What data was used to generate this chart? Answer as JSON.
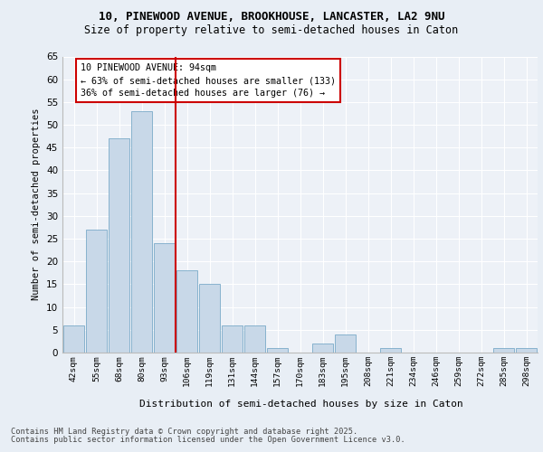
{
  "title_line1": "10, PINEWOOD AVENUE, BROOKHOUSE, LANCASTER, LA2 9NU",
  "title_line2": "Size of property relative to semi-detached houses in Caton",
  "xlabel": "Distribution of semi-detached houses by size in Caton",
  "ylabel": "Number of semi-detached properties",
  "categories": [
    "42sqm",
    "55sqm",
    "68sqm",
    "80sqm",
    "93sqm",
    "106sqm",
    "119sqm",
    "131sqm",
    "144sqm",
    "157sqm",
    "170sqm",
    "183sqm",
    "195sqm",
    "208sqm",
    "221sqm",
    "234sqm",
    "246sqm",
    "259sqm",
    "272sqm",
    "285sqm",
    "298sqm"
  ],
  "values": [
    6,
    27,
    47,
    53,
    24,
    18,
    15,
    6,
    6,
    1,
    0,
    2,
    4,
    0,
    1,
    0,
    0,
    0,
    0,
    1,
    1
  ],
  "bar_color": "#c8d8e8",
  "bar_edge_color": "#7aaac8",
  "vline_color": "#cc0000",
  "vline_index": 4,
  "annotation_title": "10 PINEWOOD AVENUE: 94sqm",
  "annotation_line1": "← 63% of semi-detached houses are smaller (133)",
  "annotation_line2": "36% of semi-detached houses are larger (76) →",
  "annotation_box_color": "#cc0000",
  "ylim": [
    0,
    65
  ],
  "yticks": [
    0,
    5,
    10,
    15,
    20,
    25,
    30,
    35,
    40,
    45,
    50,
    55,
    60,
    65
  ],
  "footer_line1": "Contains HM Land Registry data © Crown copyright and database right 2025.",
  "footer_line2": "Contains public sector information licensed under the Open Government Licence v3.0.",
  "bg_color": "#e8eef5",
  "plot_bg_color": "#edf1f7"
}
